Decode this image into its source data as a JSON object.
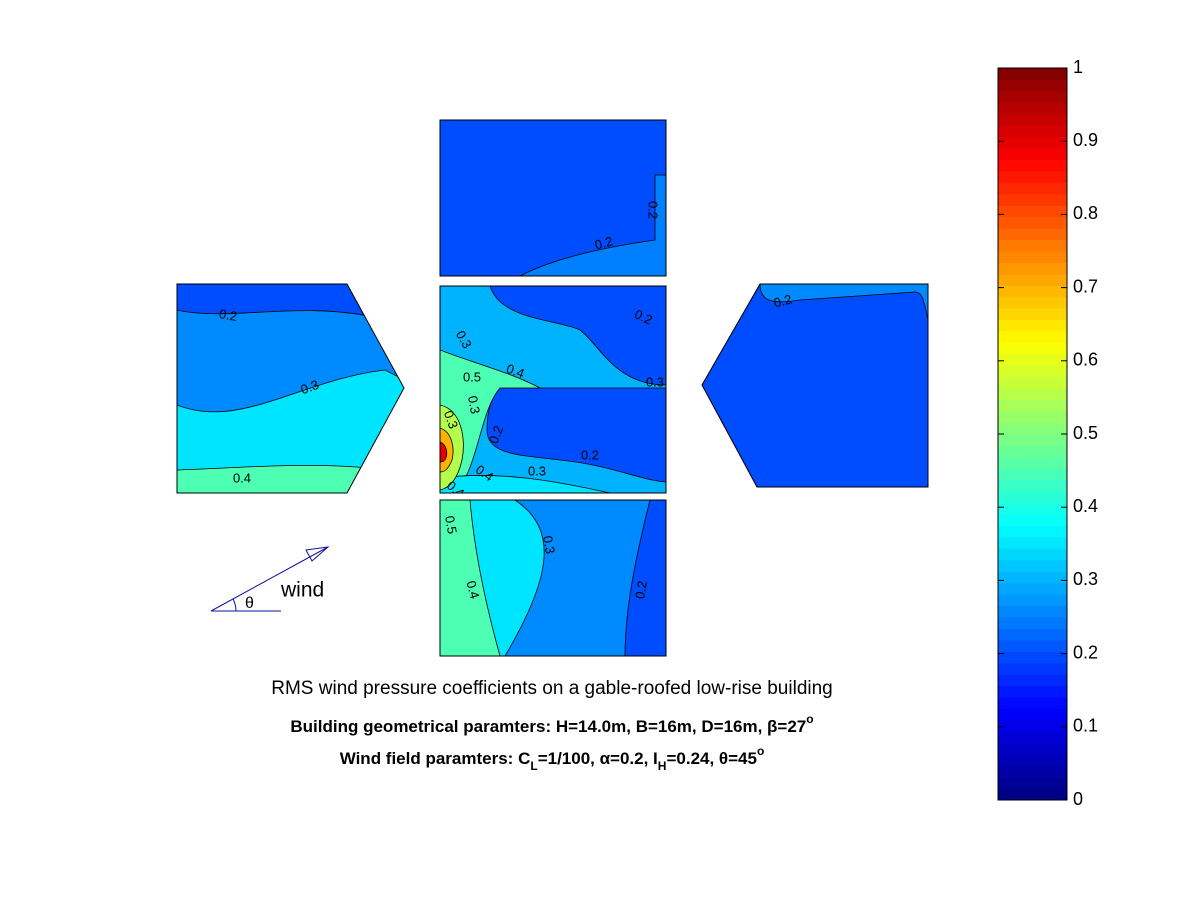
{
  "chart_data": {
    "type": "contour",
    "title": "RMS wind pressure coefficients on a gable-roofed low-rise building",
    "subtitle": [
      [
        {
          "text": "Building geometrical paramters: H=14.0m, B=16m, D=16m, β=27",
          "shift": "base"
        },
        {
          "text": "o",
          "shift": "sup"
        }
      ],
      [
        {
          "text": "Wind field paramters: C",
          "shift": "base"
        },
        {
          "text": "L",
          "shift": "sub"
        },
        {
          "text": "=1/100, α=0.2, I",
          "shift": "base"
        },
        {
          "text": "H",
          "shift": "sub"
        },
        {
          "text": "=0.24, θ=45",
          "shift": "base"
        },
        {
          "text": "o",
          "shift": "sup"
        }
      ]
    ],
    "annotations": [
      "wind",
      "θ"
    ],
    "colormap": "jet",
    "clim": [
      0,
      1
    ],
    "cticks": [
      0,
      0.1,
      0.2,
      0.3,
      0.4,
      0.5,
      0.6,
      0.7,
      0.8,
      0.9,
      1
    ],
    "panels": [
      {
        "levels": [
          0.2,
          0.25
        ],
        "contour_labels": [
          0.2,
          0.2
        ]
      },
      {
        "levels": [
          0.2,
          0.26,
          0.35,
          0.45
        ],
        "contour_labels": [
          0.2,
          0.3,
          0.4
        ]
      },
      {
        "levels": [
          0.3,
          0.2,
          0.2,
          0.45,
          0.35,
          0.55,
          0.7,
          0.9
        ],
        "contour_labels": [
          0.3,
          0.4,
          0.5,
          0.2,
          0.3,
          0.3,
          0.3,
          0.2,
          0.4,
          0.3,
          0.2,
          0.4
        ]
      },
      {
        "levels": [
          0.45,
          0.35,
          0.26,
          0.2
        ],
        "contour_labels": [
          0.5,
          0.4,
          0.3,
          0.2
        ]
      },
      {
        "levels": [
          0.2,
          0.26
        ],
        "contour_labels": [
          0.2
        ]
      }
    ]
  }
}
